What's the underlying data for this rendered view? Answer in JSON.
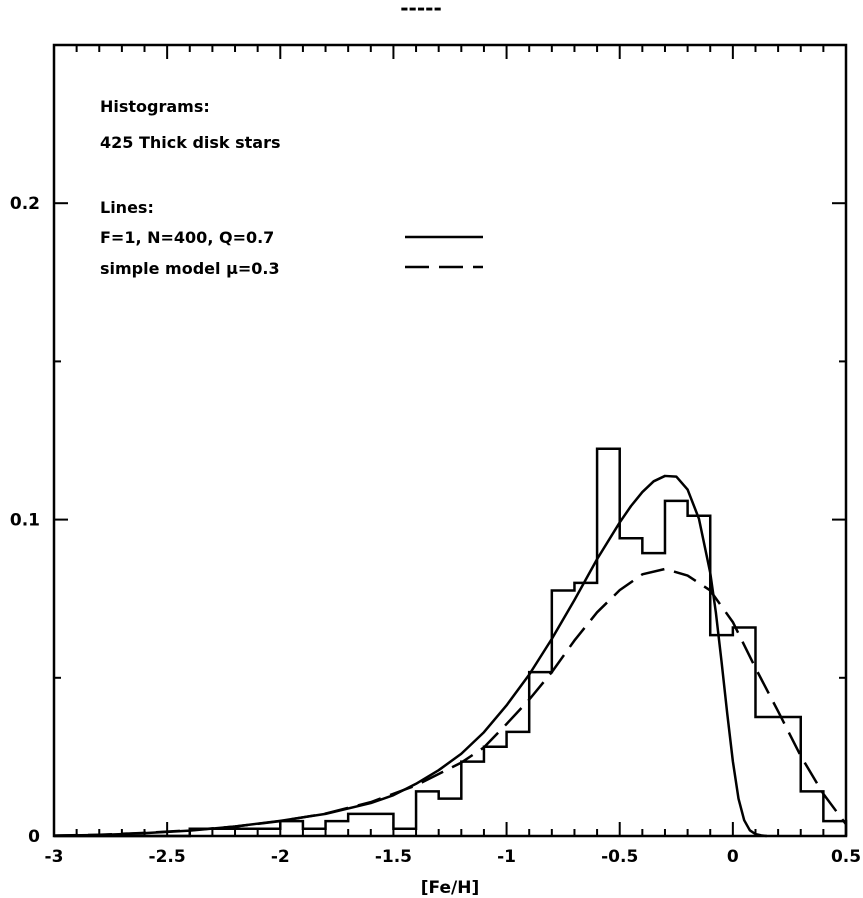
{
  "chart_data": {
    "type": "line",
    "title": "-----",
    "xlabel": "[Fe/H]",
    "ylabel": "",
    "xlim": [
      -3,
      0.5
    ],
    "ylim": [
      0,
      0.25
    ],
    "grid": false,
    "legend_position": "top-left",
    "x_ticks": [
      -3,
      -2.5,
      -2,
      -1.5,
      -1,
      -0.5,
      0,
      0.5
    ],
    "x_tick_labels": [
      "-3",
      "-2.5",
      "-2",
      "-1.5",
      "-1",
      "-0.5",
      "0",
      "0.5"
    ],
    "y_ticks": [
      0,
      0.1,
      0.2
    ],
    "y_tick_labels": [
      "0",
      "0.1",
      "0.2"
    ],
    "annotations": {
      "histograms_heading": "Histograms:",
      "histograms_desc": "425 Thick disk stars",
      "lines_heading": "Lines:",
      "line1_label": "F=1, N=400, Q=0.7",
      "line2_label": "simple model μ=0.3"
    },
    "histogram": {
      "bin_edges": [
        -3.0,
        -2.9,
        -2.8,
        -2.7,
        -2.6,
        -2.5,
        -2.4,
        -2.3,
        -2.2,
        -2.1,
        -2.0,
        -1.9,
        -1.8,
        -1.7,
        -1.6,
        -1.5,
        -1.4,
        -1.3,
        -1.2,
        -1.1,
        -1.0,
        -0.9,
        -0.8,
        -0.7,
        -0.6,
        -0.5,
        -0.4,
        -0.3,
        -0.2,
        -0.1,
        0.0,
        0.1,
        0.2,
        0.3,
        0.4,
        0.5
      ],
      "values": [
        0,
        0,
        0,
        0,
        0,
        0,
        0.0023,
        0.0023,
        0.0023,
        0.0023,
        0.0047,
        0.0023,
        0.0047,
        0.007,
        0.007,
        0.0023,
        0.0141,
        0.0118,
        0.0235,
        0.0282,
        0.0329,
        0.0518,
        0.0776,
        0.08,
        0.1224,
        0.0941,
        0.0894,
        0.1059,
        0.1012,
        0.0635,
        0.0659,
        0.0376,
        0.0376,
        0.0141,
        0.0047
      ]
    },
    "series": [
      {
        "x": [
          -3.0,
          -2.8,
          -2.6,
          -2.4,
          -2.2,
          -2.0,
          -1.8,
          -1.6,
          -1.5,
          -1.4,
          -1.3,
          -1.2,
          -1.1,
          -1.0,
          -0.9,
          -0.8,
          -0.7,
          -0.6,
          -0.5,
          -0.45,
          -0.4,
          -0.35,
          -0.3,
          -0.25,
          -0.2,
          -0.15,
          -0.1,
          -0.075,
          -0.05,
          -0.025,
          0.0,
          0.025,
          0.05,
          0.075,
          0.1,
          0.125,
          0.15
        ],
        "values": [
          0.0001,
          0.0003,
          0.0009,
          0.0017,
          0.003,
          0.0048,
          0.007,
          0.0104,
          0.0129,
          0.0165,
          0.0208,
          0.026,
          0.0328,
          0.0413,
          0.051,
          0.0623,
          0.0746,
          0.0875,
          0.0991,
          0.1043,
          0.1087,
          0.1121,
          0.1138,
          0.1136,
          0.1095,
          0.1003,
          0.0832,
          0.0706,
          0.0551,
          0.0388,
          0.0236,
          0.0118,
          0.005,
          0.0018,
          0.0006,
          0.0002,
          0.0
        ]
      },
      {
        "x": [
          -3.0,
          -2.8,
          -2.6,
          -2.4,
          -2.2,
          -2.0,
          -1.8,
          -1.6,
          -1.4,
          -1.2,
          -1.1,
          -1.0,
          -0.9,
          -0.8,
          -0.7,
          -0.6,
          -0.5,
          -0.4,
          -0.3,
          -0.2,
          -0.1,
          0.0,
          0.1,
          0.2,
          0.3,
          0.4,
          0.5
        ],
        "values": [
          0.0001,
          0.0004,
          0.001,
          0.0018,
          0.003,
          0.0047,
          0.0071,
          0.0107,
          0.016,
          0.0232,
          0.028,
          0.0354,
          0.0431,
          0.0518,
          0.0618,
          0.0707,
          0.0777,
          0.0827,
          0.0844,
          0.0823,
          0.0776,
          0.0676,
          0.0531,
          0.0394,
          0.0253,
          0.0133,
          0.0037
        ]
      }
    ]
  }
}
